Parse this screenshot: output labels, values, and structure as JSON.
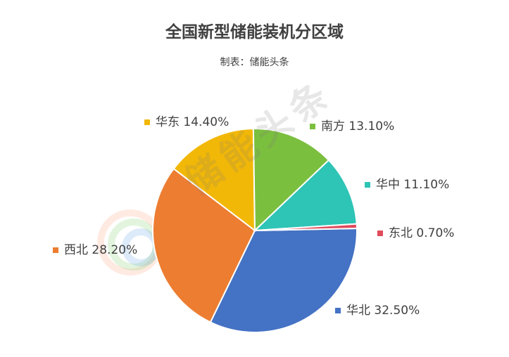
{
  "chart_data": {
    "type": "pie",
    "title": "全国新型储能装机分区域",
    "subtitle": "制表：储能头条",
    "watermark": "储能头条",
    "slices": [
      {
        "name": "华北",
        "value": 32.5,
        "label": "华北 32.50%",
        "color": "#4472C4"
      },
      {
        "name": "西北",
        "value": 28.2,
        "label": "西北 28.20%",
        "color": "#ED7D31"
      },
      {
        "name": "华东",
        "value": 14.4,
        "label": "华东 14.40%",
        "color": "#F2B807"
      },
      {
        "name": "南方",
        "value": 13.1,
        "label": "南方 13.10%",
        "color": "#7BBF3F"
      },
      {
        "name": "华中",
        "value": 11.1,
        "label": "华中 11.10%",
        "color": "#2EC4B6"
      },
      {
        "name": "东北",
        "value": 0.7,
        "label": "东北 0.70%",
        "color": "#E04B5C"
      }
    ]
  }
}
